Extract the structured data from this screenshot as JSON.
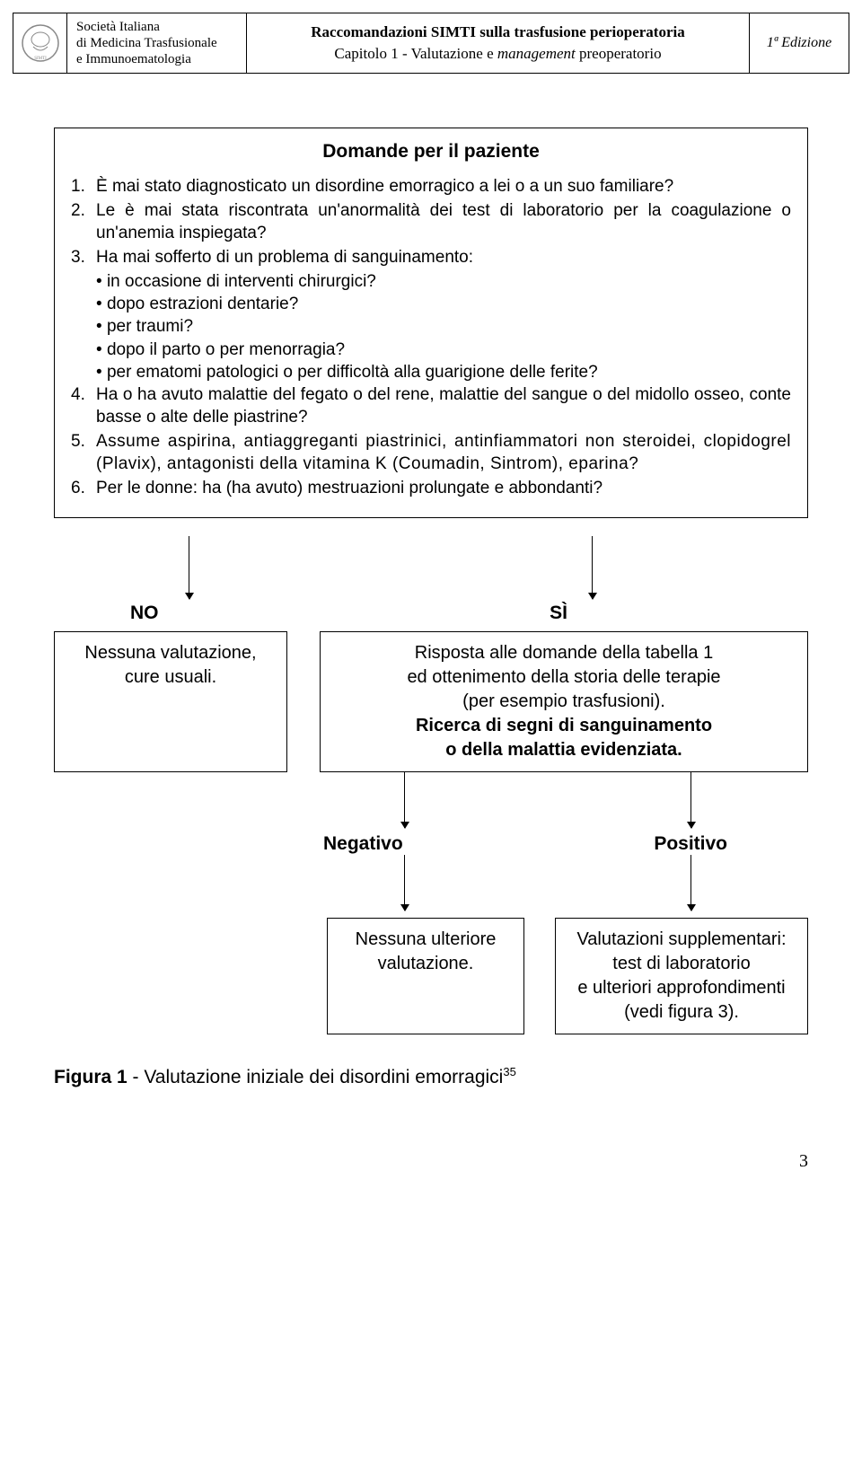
{
  "header": {
    "org_line1": "Società Italiana",
    "org_line2": "di Medicina Trasfusionale",
    "org_line3": "e Immunoematologia",
    "title_line1": "Raccomandazioni SIMTI sulla trasfusione perioperatoria",
    "chapter_prefix": "Capitolo 1 - Valutazione e ",
    "chapter_italic": "management",
    "chapter_suffix": " preoperatorio",
    "edition": "1ª Edizione"
  },
  "box_title": "Domande per il paziente",
  "questions": [
    {
      "n": "1.",
      "text": "È mai stato diagnosticato un disordine emorragico a lei o a un suo familiare?"
    },
    {
      "n": "2.",
      "text": "Le è mai stata riscontrata un'anormalità dei test di laboratorio per la coagulazione o un'anemia inspiegata?"
    },
    {
      "n": "3.",
      "text": "Ha mai sofferto di un problema di sanguinamento:",
      "sub": [
        "in occasione di interventi chirurgici?",
        "dopo estrazioni dentarie?",
        "per traumi?",
        "dopo il parto o per menorragia?",
        "per ematomi patologici o per difficoltà alla guarigione delle ferite?"
      ]
    },
    {
      "n": "4.",
      "text": "Ha o ha avuto malattie del fegato o del rene, malattie del sangue o del midollo osseo, conte basse o alte delle piastrine?"
    },
    {
      "n": "5.",
      "text": "Assume aspirina, antiaggreganti piastrinici, antinfiammatori non steroidei, clopidogrel (Plavix), antagonisti della vitamina K (Coumadin, Sintrom), eparina?",
      "spaced": true
    },
    {
      "n": "6.",
      "text": "Per le donne: ha (ha avuto) mestruazioni prolungate e abbondanti?"
    }
  ],
  "flow": {
    "no_label": "NO",
    "si_label": "SÌ",
    "no_box": "Nessuna valutazione,\ncure usuali.",
    "si_box_line1": "Risposta alle domande della tabella 1",
    "si_box_line2": "ed ottenimento della storia delle terapie",
    "si_box_line3": "(per esempio trasfusioni).",
    "si_box_line4": "Ricerca di segni di sanguinamento",
    "si_box_line5": "o della malattia evidenziata.",
    "negativo": "Negativo",
    "positivo": "Positivo",
    "neg_box": "Nessuna ulteriore\nvalutazione.",
    "pos_box": "Valutazioni supplementari:\ntest di laboratorio\ne ulteriori approfondimenti\n(vedi figura 3)."
  },
  "caption": {
    "bold": "Figura 1",
    "text": " - Valutazione iniziale dei disordini emorragici",
    "ref": "35"
  },
  "page_number": "3",
  "colors": {
    "border": "#000000",
    "text": "#000000",
    "background": "#ffffff"
  }
}
